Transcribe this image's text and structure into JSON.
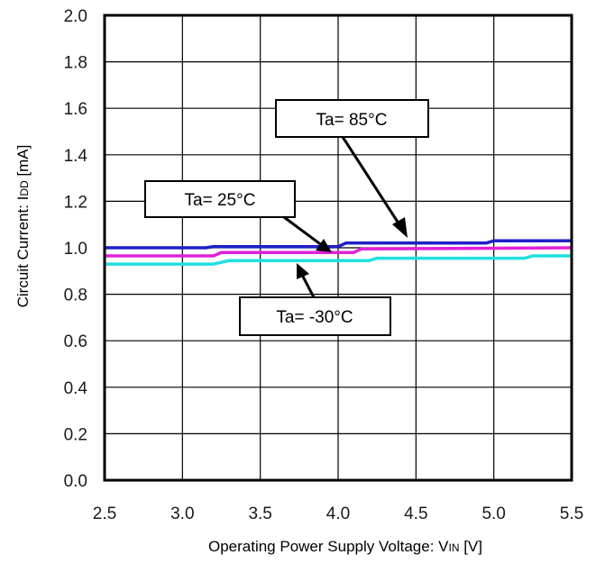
{
  "chart_data": {
    "type": "line",
    "title": "",
    "xlim": [
      2.5,
      5.5
    ],
    "ylim": [
      0.0,
      2.0
    ],
    "x_ticks": [
      "2.5",
      "3.0",
      "3.5",
      "4.0",
      "4.5",
      "5.0",
      "5.5"
    ],
    "y_ticks": [
      "0.0",
      "0.2",
      "0.4",
      "0.6",
      "0.8",
      "1.0",
      "1.2",
      "1.4",
      "1.6",
      "1.8",
      "2.0"
    ],
    "grid": true,
    "xlabel": {
      "main": "Operating Power Supply Voltage: V",
      "sub": "IN",
      "unit": " [V]"
    },
    "ylabel": {
      "main": "Circuit Current: I",
      "sub": "DD",
      "unit": " [mA]"
    },
    "series": [
      {
        "name": "Ta= 85°C",
        "color": "#1f1fc8",
        "points": [
          [
            2.5,
            1.0
          ],
          [
            3.15,
            1.0
          ],
          [
            3.2,
            1.005
          ],
          [
            4.0,
            1.005
          ],
          [
            4.05,
            1.02
          ],
          [
            4.95,
            1.02
          ],
          [
            5.0,
            1.03
          ],
          [
            5.5,
            1.03
          ]
        ]
      },
      {
        "name": "Ta= 25°C",
        "color": "#e020d8",
        "points": [
          [
            2.5,
            0.965
          ],
          [
            3.2,
            0.965
          ],
          [
            3.25,
            0.98
          ],
          [
            4.1,
            0.98
          ],
          [
            4.15,
            0.995
          ],
          [
            5.5,
            1.0
          ]
        ]
      },
      {
        "name": "Ta= -30°C",
        "color": "#20e0e0",
        "points": [
          [
            2.5,
            0.93
          ],
          [
            3.2,
            0.93
          ],
          [
            3.3,
            0.945
          ],
          [
            4.2,
            0.945
          ],
          [
            4.25,
            0.955
          ],
          [
            5.2,
            0.955
          ],
          [
            5.25,
            0.965
          ],
          [
            5.5,
            0.965
          ]
        ]
      }
    ],
    "annotations": [
      {
        "label": "Ta= 85°C",
        "target": [
          4.5,
          1.02
        ]
      },
      {
        "label": "Ta= 25°C",
        "target": [
          4.0,
          0.985
        ]
      },
      {
        "label": "Ta= -30°C",
        "target": [
          3.9,
          0.94
        ]
      }
    ]
  }
}
